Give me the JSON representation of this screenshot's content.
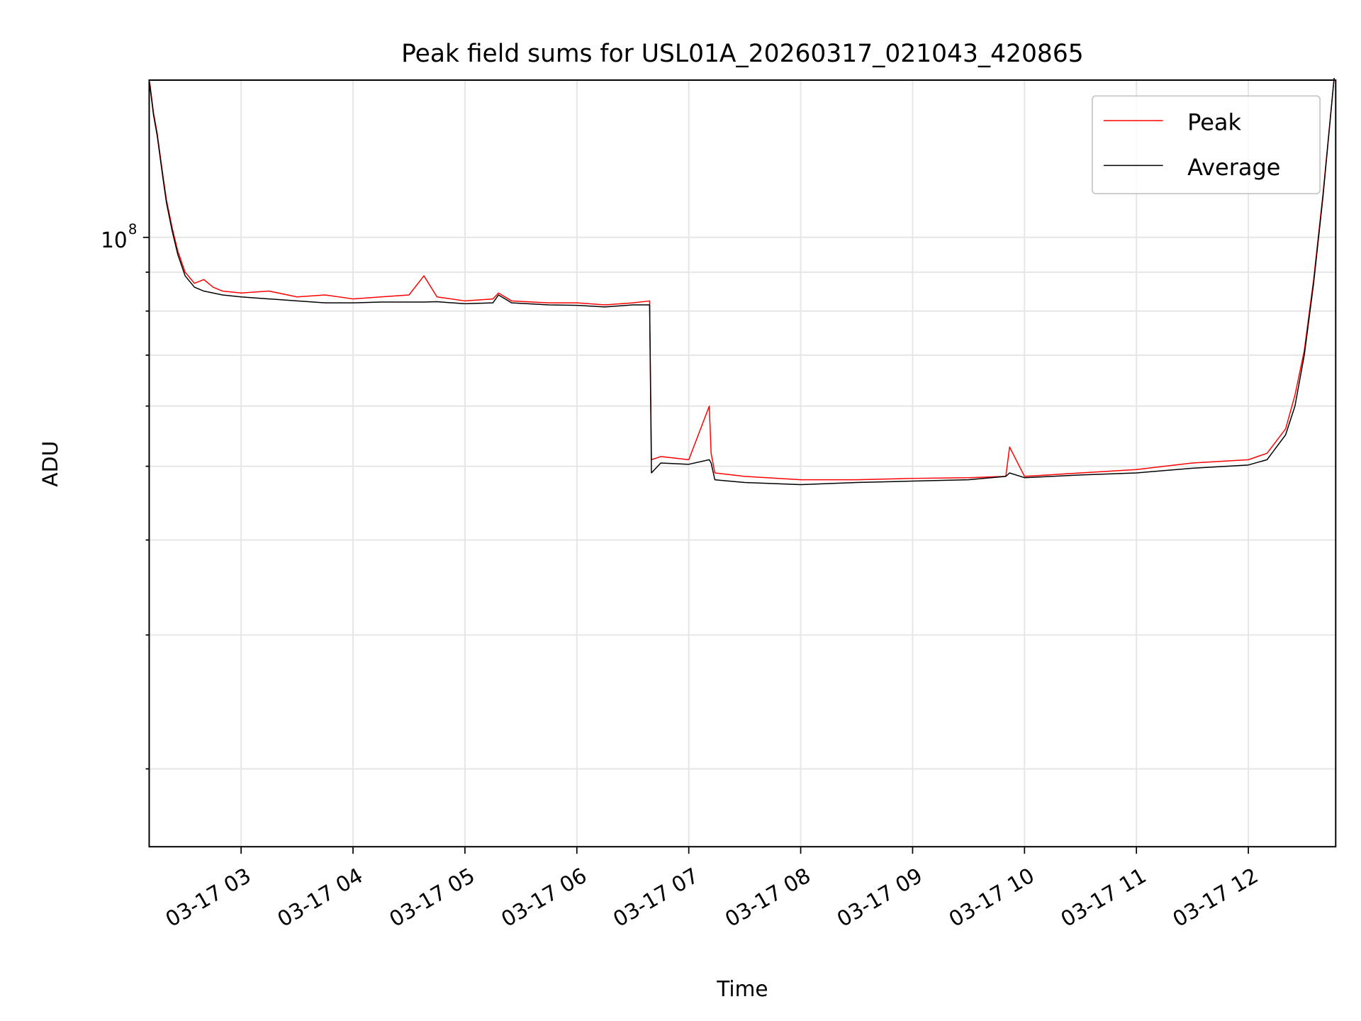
{
  "chart_data": {
    "type": "line",
    "title": "Peak field sums for USL01A_20260317_021043_420865",
    "xlabel": "Time",
    "ylabel": "ADU",
    "yscale": "log",
    "ylim": [
      15800000.0,
      161000000.0
    ],
    "xlim": [
      "02:10:43",
      "12:46:50"
    ],
    "x_ticks": [
      "03-17 03",
      "03-17 04",
      "03-17 05",
      "03-17 06",
      "03-17 07",
      "03-17 08",
      "03-17 09",
      "03-17 10",
      "03-17 11",
      "03-17 12"
    ],
    "x_tick_hours": [
      3,
      4,
      5,
      6,
      7,
      8,
      9,
      10,
      11,
      12
    ],
    "y_major_tick": {
      "base": "10",
      "exp": "8",
      "value": 100000000.0
    },
    "y_minor_ticks": [
      20000000.0,
      30000000.0,
      40000000.0,
      50000000.0,
      60000000.0,
      70000000.0,
      80000000.0,
      90000000.0
    ],
    "grid": true,
    "legend": {
      "placement": "top-right",
      "entries": [
        "Peak",
        "Average"
      ]
    },
    "colors": {
      "Peak": "#ff0000",
      "Average": "#000000",
      "grid": "#e6e6e6"
    },
    "x": [
      "02:11",
      "02:13",
      "02:15",
      "02:18",
      "02:20",
      "02:23",
      "02:26",
      "02:30",
      "02:35",
      "02:40",
      "02:45",
      "02:50",
      "03:00",
      "03:15",
      "03:30",
      "03:45",
      "04:00",
      "04:15",
      "04:30",
      "04:38",
      "04:45",
      "05:00",
      "05:15",
      "05:18",
      "05:25",
      "05:45",
      "06:00",
      "06:15",
      "06:30",
      "06:39",
      "06:40",
      "06:45",
      "07:00",
      "07:11",
      "07:12",
      "07:14",
      "07:30",
      "08:00",
      "08:30",
      "09:00",
      "09:30",
      "09:50",
      "09:52",
      "10:00",
      "10:30",
      "11:00",
      "11:30",
      "12:00",
      "12:10",
      "12:20",
      "12:25",
      "12:30",
      "12:35",
      "12:40",
      "12:46"
    ],
    "series": [
      {
        "name": "Peak",
        "values": [
          160000000.0,
          146000000.0,
          137000000.0,
          121000000.0,
          112000000.0,
          103000000.0,
          96000000.0,
          90000000.0,
          87000000.0,
          88000000.0,
          86000000.0,
          85000000.0,
          84500000.0,
          85000000.0,
          83500000.0,
          84000000.0,
          83000000.0,
          83500000.0,
          84000000.0,
          89000000.0,
          83500000.0,
          82500000.0,
          83000000.0,
          84500000.0,
          82500000.0,
          82000000.0,
          82000000.0,
          81500000.0,
          82000000.0,
          82500000.0,
          51000000.0,
          51500000.0,
          51000000.0,
          60000000.0,
          52000000.0,
          49000000.0,
          48500000.0,
          48000000.0,
          48000000.0,
          48200000.0,
          48300000.0,
          48500000.0,
          53000000.0,
          48500000.0,
          49000000.0,
          49500000.0,
          50500000.0,
          51000000.0,
          52000000.0,
          56000000.0,
          62000000.0,
          71000000.0,
          88000000.0,
          114000000.0,
          162000000.0
        ]
      },
      {
        "name": "Average",
        "values": [
          159000000.0,
          145000000.0,
          136000000.0,
          120000000.0,
          111000000.0,
          102000000.0,
          95000000.0,
          89000000.0,
          86000000.0,
          85000000.0,
          84500000.0,
          84000000.0,
          83500000.0,
          83000000.0,
          82500000.0,
          82000000.0,
          82000000.0,
          82200000.0,
          82200000.0,
          82200000.0,
          82300000.0,
          81800000.0,
          82000000.0,
          84000000.0,
          82000000.0,
          81500000.0,
          81400000.0,
          81000000.0,
          81500000.0,
          81500000.0,
          49000000.0,
          50500000.0,
          50300000.0,
          51000000.0,
          50500000.0,
          48000000.0,
          47600000.0,
          47300000.0,
          47600000.0,
          47800000.0,
          48000000.0,
          48500000.0,
          49000000.0,
          48300000.0,
          48700000.0,
          49000000.0,
          49700000.0,
          50200000.0,
          51000000.0,
          55000000.0,
          60000000.0,
          70000000.0,
          87000000.0,
          113000000.0,
          162000000.0
        ]
      }
    ]
  }
}
